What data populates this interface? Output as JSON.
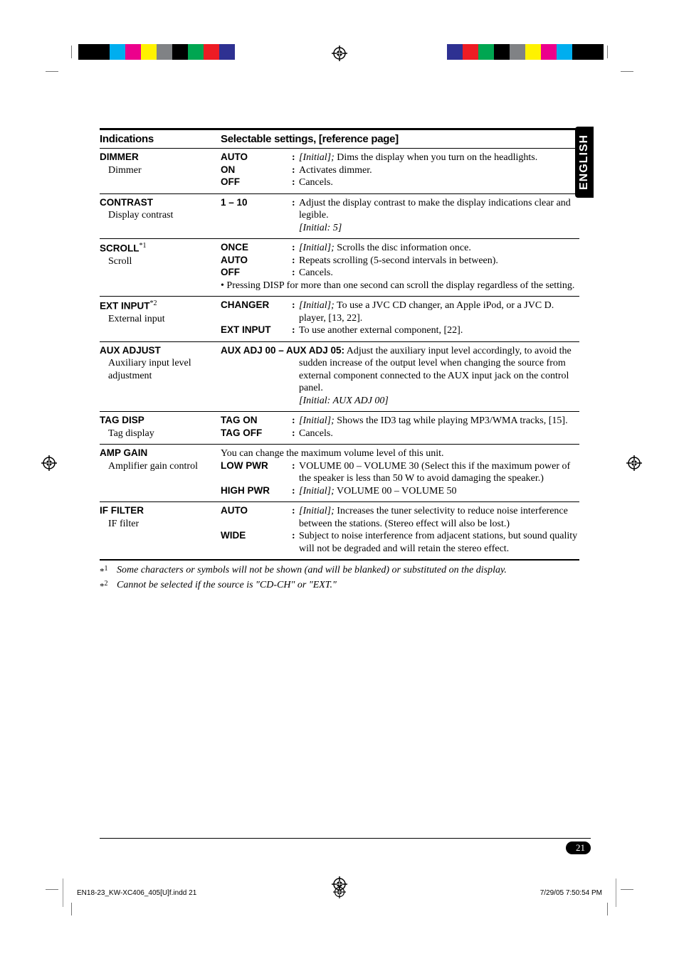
{
  "regmark_svg_color": "#000000",
  "bars": {
    "colors_left": [
      "#00aeef",
      "#ec008c",
      "#fff200",
      "#808285",
      "#000000",
      "#00a651",
      "#ed1c24",
      "#2e3192"
    ],
    "colors_right": [
      "#00aeef",
      "#ec008c",
      "#fff200",
      "#808285",
      "#000000",
      "#00a651",
      "#ed1c24",
      "#2e3192"
    ]
  },
  "tab_label": "ENGLISH",
  "headers": {
    "indications": "Indications",
    "selectable": "Selectable settings, [reference page]"
  },
  "rows": [
    {
      "ind_head": "DIMMER",
      "ind_sub": "Dimmer",
      "lines": [
        {
          "opt": "AUTO",
          "desc_html": "<span class='ital'>[Initial];</span> Dims the display when you turn on the headlights."
        },
        {
          "opt": "ON",
          "desc_html": "Activates dimmer."
        },
        {
          "opt": "OFF",
          "desc_html": "Cancels."
        }
      ]
    },
    {
      "ind_head": "CONTRAST",
      "ind_sub": "Display contrast",
      "lines": [
        {
          "opt": "1 – 10",
          "desc_html": "Adjust the display contrast to make the display indications clear and legible.<br><span class='ital'>[Initial: 5]</span>"
        }
      ]
    },
    {
      "ind_head": "SCROLL",
      "ind_sup": "*1",
      "ind_sub": "Scroll",
      "lines": [
        {
          "opt": "ONCE",
          "desc_html": "<span class='ital'>[Initial];</span> Scrolls the disc information once."
        },
        {
          "opt": "AUTO",
          "desc_html": "Repeats scrolling (5-second intervals in between)."
        },
        {
          "opt": "OFF",
          "desc_html": "Cancels."
        }
      ],
      "note": "•  Pressing DISP for more than one second can scroll the display regardless of the setting."
    },
    {
      "ind_head": "EXT INPUT",
      "ind_sup": "*2",
      "ind_sub": "External input",
      "lines": [
        {
          "opt": "CHANGER",
          "desc_html": "<span class='ital'>[Initial];</span> To use a JVC CD changer, an Apple iPod, or a JVC D. player, [13, 22]."
        },
        {
          "opt": "EXT INPUT",
          "desc_html": "To use another external component, [22]."
        }
      ]
    },
    {
      "ind_head": "AUX ADJUST",
      "ind_sub": "Auxiliary input level adjustment",
      "full_desc_html": "<span class='opt'>AUX ADJ 00 – AUX ADJ 05:</span> Adjust the auxiliary input level accordingly, to avoid the sudden increase of the output level when changing the source from external component connected to the AUX input jack on the control panel.<br><span class='ital'>[Initial: AUX ADJ 00]</span>",
      "full_indent": true
    },
    {
      "ind_head": "TAG DISP",
      "ind_sub": "Tag display",
      "lines": [
        {
          "opt": "TAG ON",
          "desc_html": "<span class='ital'>[Initial];</span> Shows the ID3 tag while playing MP3/WMA tracks, [15]."
        },
        {
          "opt": "TAG OFF",
          "desc_html": "Cancels."
        }
      ]
    },
    {
      "ind_head": "AMP GAIN",
      "ind_sub": "Amplifier gain control",
      "pre_text": "You can change the maximum volume level of this unit.",
      "lines": [
        {
          "opt": "LOW PWR",
          "desc_html": "VOLUME 00 – VOLUME 30 (Select this if the maximum power of the speaker is less than 50 W to avoid damaging the speaker.)"
        },
        {
          "opt": "HIGH PWR",
          "desc_html": "<span class='ital'>[Initial];</span> VOLUME 00 – VOLUME 50"
        }
      ]
    },
    {
      "ind_head": "IF FILTER",
      "ind_sub": "IF filter",
      "lines": [
        {
          "opt": "AUTO",
          "desc_html": "<span class='ital'>[Initial];</span> Increases the tuner selectivity to reduce noise interference between the stations. (Stereo effect will also be lost.)"
        },
        {
          "opt": "WIDE",
          "desc_html": "Subject to noise interference from adjacent stations, but sound quality will not be degraded and will retain the stereo effect."
        }
      ]
    }
  ],
  "footnotes": [
    {
      "mark": "*1",
      "text": "Some characters or symbols will not be shown (and will be blanked) or substituted on the display."
    },
    {
      "mark": "*2",
      "text": "Cannot be selected if the source is \"CD-CH\" or \"EXT.\""
    }
  ],
  "page_number": "21",
  "footer": {
    "left": "EN18-23_KW-XC406_405[U]f.indd   21",
    "right": "7/29/05   7:50:54 PM"
  }
}
